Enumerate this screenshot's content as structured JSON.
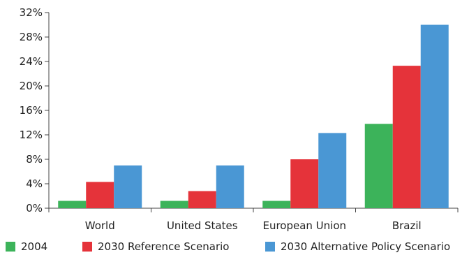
{
  "chart_data": {
    "type": "bar",
    "categories": [
      "World",
      "United States",
      "European Union",
      "Brazil"
    ],
    "series": [
      {
        "name": "2004",
        "color": "#3cb35a",
        "values": [
          1.2,
          1.2,
          1.2,
          13.8
        ]
      },
      {
        "name": "2030 Reference Scenario",
        "color": "#e5333a",
        "values": [
          4.3,
          2.8,
          8.0,
          23.3
        ]
      },
      {
        "name": "2030 Alternative Policy Scenario",
        "color": "#4a97d4",
        "values": [
          7.0,
          7.0,
          12.3,
          30.0
        ]
      }
    ],
    "ylim": [
      0,
      32
    ],
    "y_ticks": [
      0,
      4,
      8,
      12,
      16,
      20,
      24,
      28,
      32
    ],
    "y_tick_labels": [
      "0%",
      "4%",
      "8%",
      "12%",
      "16%",
      "20%",
      "24%",
      "28%",
      "32%"
    ],
    "grid": false,
    "legend_position": "bottom",
    "title": "",
    "xlabel": "",
    "ylabel": ""
  }
}
